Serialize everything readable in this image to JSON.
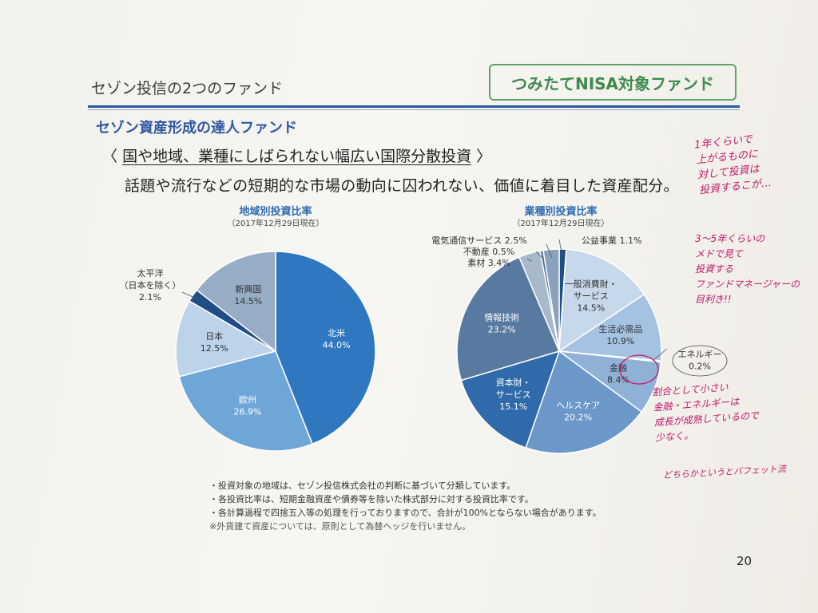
{
  "header": {
    "title": "セゾン投信の2つのファンド",
    "badge": "つみたてNISA対象ファンド"
  },
  "fund": {
    "name": "セゾン資産形成の達人ファンド",
    "tagline_open": "〈",
    "tagline": "国や地域、業種にしばられない幅広い国際分散投資",
    "tagline_close": "〉",
    "description": "話題や流行などの短期的な市場の動向に囚われない、価値に着目した資産配分。"
  },
  "chart_data": [
    {
      "type": "pie",
      "title": "地域別投資比率",
      "subtitle": "（2017年12月29日現在）",
      "slices": [
        {
          "label": "北米",
          "value": 44.0,
          "display": "44.0%",
          "color": "#2f78c0"
        },
        {
          "label": "欧州",
          "value": 26.9,
          "display": "26.9%",
          "color": "#6ea6d8"
        },
        {
          "label": "日本",
          "value": 12.5,
          "display": "12.5%",
          "color": "#bcd3ea"
        },
        {
          "label": "太平洋（日本を除く）",
          "label_lines": [
            "太平洋",
            "（日本を除く）"
          ],
          "value": 2.1,
          "display": "2.1%",
          "color": "#1f4e86"
        },
        {
          "label": "新興国",
          "value": 14.5,
          "display": "14.5%",
          "color": "#97adc5"
        }
      ]
    },
    {
      "type": "pie",
      "title": "業種別投資比率",
      "subtitle": "（2017年12月29日現在）",
      "slices": [
        {
          "label": "公益事業",
          "value": 1.1,
          "display": "1.1%",
          "color": "#1f4e86"
        },
        {
          "label": "一般消費財・サービス",
          "label_lines": [
            "一般消費財・",
            "サービス"
          ],
          "value": 14.5,
          "display": "14.5%",
          "color": "#c7d8ea"
        },
        {
          "label": "生活必需品",
          "value": 10.9,
          "display": "10.9%",
          "color": "#a4c3e2"
        },
        {
          "label": "エネルギー",
          "value": 0.2,
          "display": "0.2%",
          "color": "#3b6ea8"
        },
        {
          "label": "金融",
          "value": 8.4,
          "display": "8.4%",
          "color": "#8fb1d6"
        },
        {
          "label": "ヘルスケア",
          "value": 20.2,
          "display": "20.2%",
          "color": "#6b97c9"
        },
        {
          "label": "資本財・サービス",
          "label_lines": [
            "資本財・",
            "サービス"
          ],
          "value": 15.1,
          "display": "15.1%",
          "color": "#2f6aaa"
        },
        {
          "label": "情報技術",
          "value": 23.2,
          "display": "23.2%",
          "color": "#5879a0"
        },
        {
          "label": "素材",
          "value": 3.4,
          "display": "3.4%",
          "color": "#a9b9cc"
        },
        {
          "label": "不動産",
          "value": 0.5,
          "display": "0.5%",
          "color": "#4e6e92"
        },
        {
          "label": "電気通信サービス",
          "value": 2.5,
          "display": "2.5%",
          "color": "#8aa2bd"
        }
      ]
    }
  ],
  "notes": [
    "・投資対象の地域は、セゾン投信株式会社の判断に基づいて分類しています。",
    "・各投資比率は、短期金融資産や債券等を除いた株式部分に対する投資比率です。",
    "・各計算過程で四捨五入等の処理を行っておりますので、合計が100%とならない場合があります。",
    "※外貨建て資産については、原則として為替ヘッジを行いません。"
  ],
  "page_number": "20",
  "handwritten": {
    "note1": "1年くらいで\n上がるものに\n対して投資は\n投資するこが…",
    "note2": "3〜5年くらいの\nメドで見て\n投資する\nファンドマネージャーの\n目利き!!",
    "note3": "割合として小さい\n金融・エネルギーは\n成長が成熟しているので\n少なく。",
    "note4": "どちらかというとバフェット流"
  }
}
